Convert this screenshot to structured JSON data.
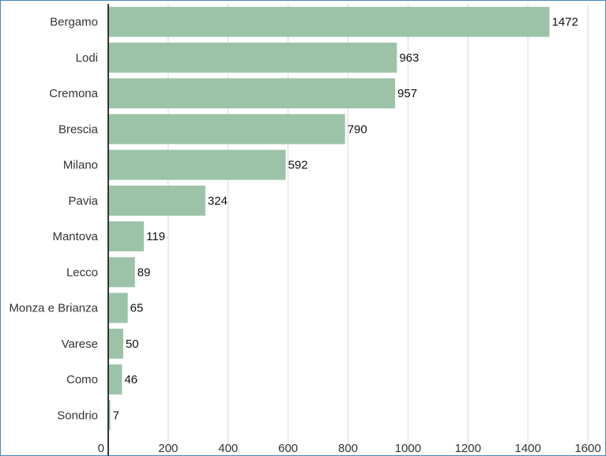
{
  "chart_data": {
    "type": "bar",
    "orientation": "horizontal",
    "categories": [
      "Bergamo",
      "Lodi",
      "Cremona",
      "Brescia",
      "Milano",
      "Pavia",
      "Mantova",
      "Lecco",
      "Monza e Brianza",
      "Varese",
      "Como",
      "Sondrio"
    ],
    "values": [
      1472,
      963,
      957,
      790,
      592,
      324,
      119,
      89,
      65,
      50,
      46,
      7
    ],
    "xlim": [
      0,
      1600
    ],
    "xticks": [
      0,
      200,
      400,
      600,
      800,
      1000,
      1200,
      1400,
      1600
    ],
    "grid": true,
    "bar_color": "#9cc3a8",
    "title": "",
    "xlabel": "",
    "ylabel": ""
  }
}
